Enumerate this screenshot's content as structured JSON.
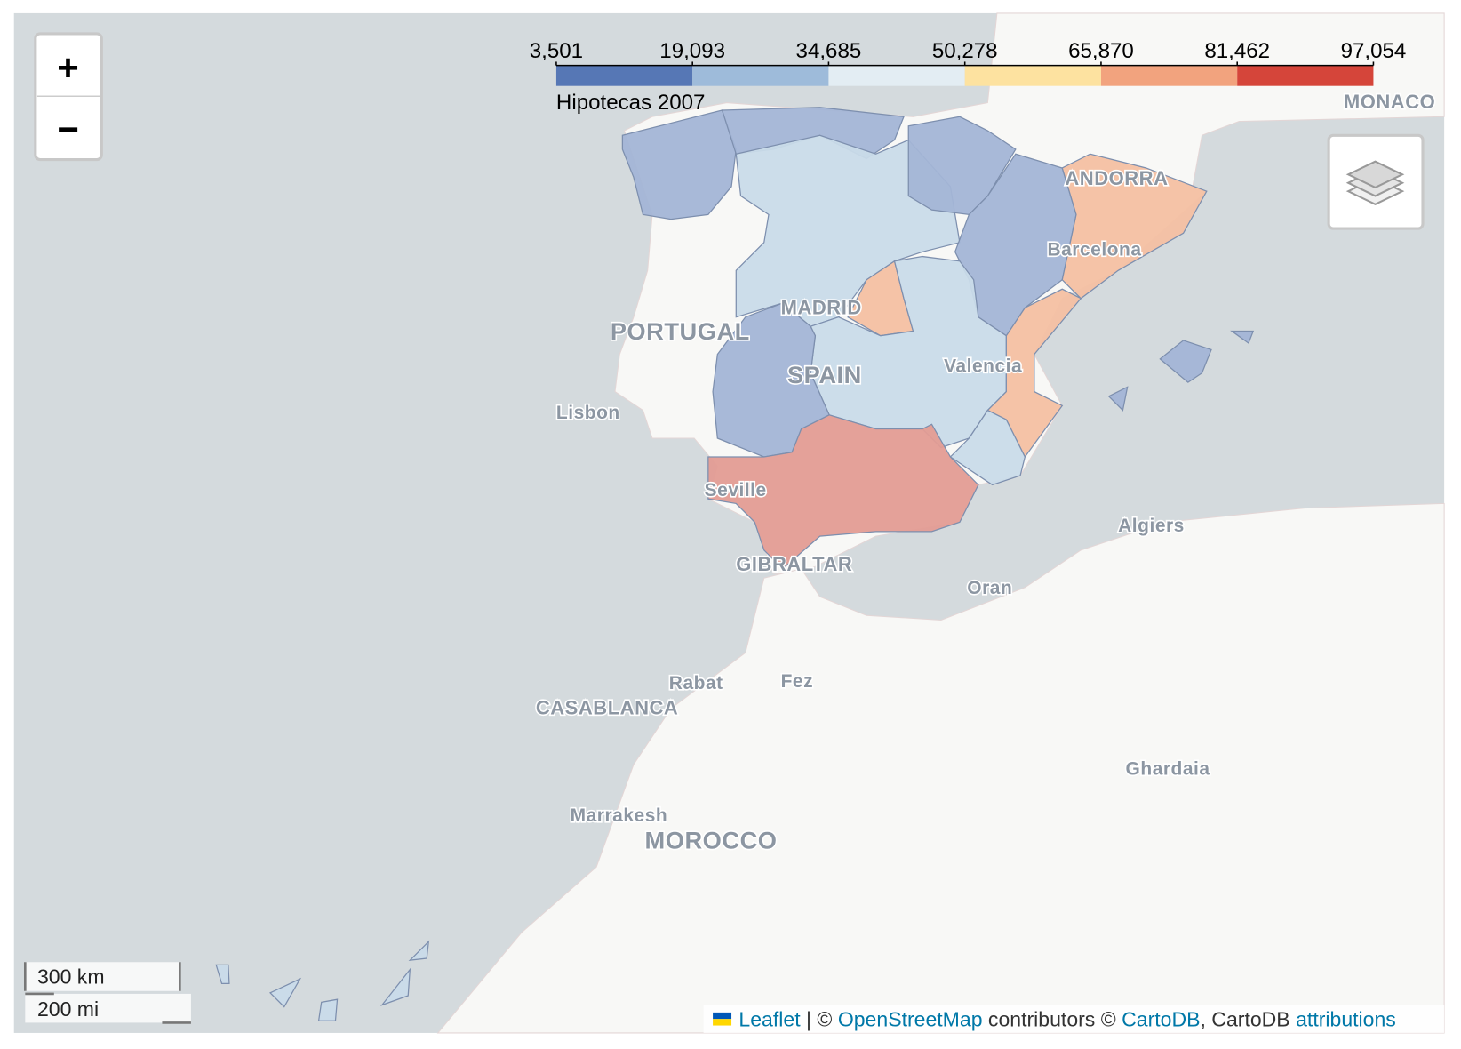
{
  "legend": {
    "title": "Hipotecas 2007",
    "ticks": [
      {
        "value": 3501,
        "label": "3,501"
      },
      {
        "value": 19093,
        "label": "19,093"
      },
      {
        "value": 34685,
        "label": "34,685"
      },
      {
        "value": 50278,
        "label": "50,278"
      },
      {
        "value": 65870,
        "label": "65,870"
      },
      {
        "value": 81462,
        "label": "81,462"
      },
      {
        "value": 97054,
        "label": "97,054"
      }
    ],
    "colors": [
      "#5677b5",
      "#9ebbda",
      "#e3edf3",
      "#fde2a0",
      "#f2a37e",
      "#d5453a"
    ]
  },
  "zoom": {
    "in": "+",
    "out": "−"
  },
  "map_labels": {
    "portugal": "PORTUGAL",
    "spain": "SPAIN",
    "madrid": "MADRID",
    "lisbon": "Lisbon",
    "seville": "Seville",
    "valencia": "Valencia",
    "barcelona": "Barcelona",
    "andorra": "ANDORRA",
    "monaco": "MONACO",
    "gibraltar": "GIBRALTAR",
    "oran": "Oran",
    "algiers": "Algiers",
    "rabat": "Rabat",
    "fez": "Fez",
    "casablanca": "CASABLANCA",
    "ghardaia": "Ghardaia",
    "marrakesh": "Marrakesh",
    "morocco": "MOROCCO"
  },
  "scale": {
    "metric": "300 km",
    "imperial": "200 mi"
  },
  "attribution": {
    "leaflet": "Leaflet",
    "sep": " | © ",
    "osm": "OpenStreetMap",
    "contrib": " contributors © ",
    "carto": "CartoDB",
    "carto2": ", CartoDB ",
    "attributions": "attributions"
  }
}
